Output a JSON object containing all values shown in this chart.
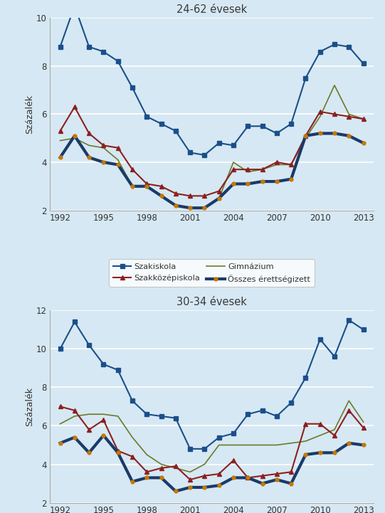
{
  "top_title": "24-62 évesek",
  "bottom_title": "30-34 évesek",
  "ylabel": "Százalék",
  "legend_labels": [
    "Szakiskola",
    "Szakközépiskola",
    "Gimnázium",
    "Összes érettségizett"
  ],
  "top": {
    "years": [
      1992,
      1993,
      1994,
      1995,
      1996,
      1997,
      1998,
      1999,
      2000,
      2001,
      2002,
      2003,
      2004,
      2005,
      2006,
      2007,
      2008,
      2009,
      2010,
      2011,
      2012,
      2013
    ],
    "szakiskola": [
      8.8,
      10.5,
      8.8,
      8.6,
      8.2,
      7.1,
      5.9,
      5.6,
      5.3,
      4.4,
      4.3,
      4.8,
      4.7,
      5.5,
      5.5,
      5.2,
      5.6,
      7.5,
      8.6,
      8.9,
      8.8,
      8.1
    ],
    "szakkozepiskola": [
      5.3,
      6.3,
      5.2,
      4.7,
      4.6,
      3.7,
      3.1,
      3.0,
      2.7,
      2.6,
      2.6,
      2.8,
      3.7,
      3.7,
      3.7,
      4.0,
      3.9,
      5.1,
      6.1,
      6.0,
      5.9,
      5.8
    ],
    "gimnazium": [
      4.9,
      5.0,
      4.7,
      4.6,
      4.1,
      3.0,
      3.0,
      2.6,
      2.2,
      2.1,
      2.1,
      2.5,
      4.0,
      3.6,
      3.7,
      3.9,
      3.9,
      5.0,
      5.9,
      7.2,
      6.0,
      5.8
    ],
    "osszes": [
      4.2,
      5.1,
      4.2,
      4.0,
      3.9,
      3.0,
      3.0,
      2.6,
      2.2,
      2.1,
      2.1,
      2.5,
      3.1,
      3.1,
      3.2,
      3.2,
      3.3,
      5.1,
      5.2,
      5.2,
      5.1,
      4.8
    ],
    "ylim": [
      2,
      10
    ],
    "yticks": [
      2,
      4,
      6,
      8,
      10
    ]
  },
  "bottom": {
    "years": [
      1992,
      1993,
      1994,
      1995,
      1996,
      1997,
      1998,
      1999,
      2000,
      2001,
      2002,
      2003,
      2004,
      2005,
      2006,
      2007,
      2008,
      2009,
      2010,
      2011,
      2012,
      2013
    ],
    "szakiskola": [
      10.0,
      11.4,
      10.2,
      9.2,
      8.9,
      7.3,
      6.6,
      6.5,
      6.4,
      4.8,
      4.8,
      5.4,
      5.6,
      6.6,
      6.8,
      6.5,
      7.2,
      8.5,
      10.5,
      9.6,
      11.5,
      11.0
    ],
    "szakkozepiskola": [
      7.0,
      6.8,
      5.8,
      6.3,
      4.7,
      4.4,
      3.6,
      3.8,
      3.9,
      3.2,
      3.4,
      3.5,
      4.2,
      3.3,
      3.4,
      3.5,
      3.6,
      6.1,
      6.1,
      5.5,
      6.8,
      5.9
    ],
    "gimnazium": [
      6.1,
      6.5,
      6.6,
      6.6,
      6.5,
      5.4,
      4.5,
      4.0,
      3.8,
      3.6,
      4.0,
      5.0,
      5.0,
      5.0,
      5.0,
      5.0,
      5.1,
      5.2,
      5.5,
      5.8,
      7.3,
      6.2
    ],
    "osszes": [
      5.1,
      5.4,
      4.6,
      5.5,
      4.6,
      3.1,
      3.3,
      3.3,
      2.6,
      2.8,
      2.8,
      2.9,
      3.3,
      3.3,
      3.0,
      3.2,
      3.0,
      4.5,
      4.6,
      4.6,
      5.1,
      5.0
    ],
    "ylim": [
      2,
      12
    ],
    "yticks": [
      2,
      4,
      6,
      8,
      10,
      12
    ]
  },
  "colors": {
    "szakiskola": "#1a4f8a",
    "szakkozepiskola": "#8b2020",
    "gimnazium": "#6b7a2a",
    "osszes_line": "#1a3a6a",
    "osszes_marker": "#c87800"
  },
  "xticks": [
    1992,
    1995,
    1998,
    2001,
    2004,
    2007,
    2010,
    2013
  ],
  "fig_bg": "#d6e8f3",
  "plot_bg": "#d6e8f3",
  "grid_color": "#ffffff",
  "title_color": "#3a3a3a",
  "tick_color": "#333333",
  "ylabel_color": "#333333"
}
